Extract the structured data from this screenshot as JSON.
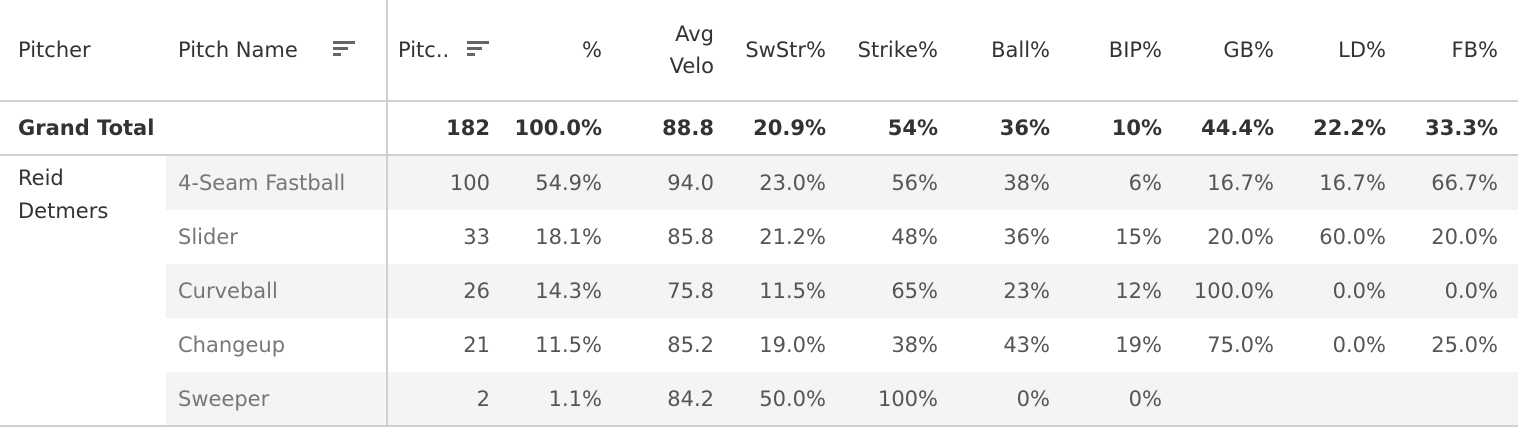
{
  "headers": {
    "pitcher": "Pitcher",
    "pitch_name": "Pitch Name",
    "pitches": "Pitc..",
    "pct": "%",
    "avg_velo_1": "Avg",
    "avg_velo_2": "Velo",
    "swstr": "SwStr%",
    "strike": "Strike%",
    "ball": "Ball%",
    "bip": "BIP%",
    "gb": "GB%",
    "ld": "LD%",
    "fb": "FB%"
  },
  "grand_total": {
    "label": "Grand Total",
    "pitches": "182",
    "pct": "100.0%",
    "avg_velo": "88.8",
    "swstr": "20.9%",
    "strike": "54%",
    "ball": "36%",
    "bip": "10%",
    "gb": "44.4%",
    "ld": "22.2%",
    "fb": "33.3%"
  },
  "pitcher": {
    "name_line1": "Reid",
    "name_line2": "Detmers"
  },
  "rows": [
    {
      "name": "4-Seam Fastball",
      "pitches": "100",
      "pct": "54.9%",
      "avg_velo": "94.0",
      "swstr": "23.0%",
      "strike": "56%",
      "ball": "38%",
      "bip": "6%",
      "gb": "16.7%",
      "ld": "16.7%",
      "fb": "66.7%"
    },
    {
      "name": "Slider",
      "pitches": "33",
      "pct": "18.1%",
      "avg_velo": "85.8",
      "swstr": "21.2%",
      "strike": "48%",
      "ball": "36%",
      "bip": "15%",
      "gb": "20.0%",
      "ld": "60.0%",
      "fb": "20.0%"
    },
    {
      "name": "Curveball",
      "pitches": "26",
      "pct": "14.3%",
      "avg_velo": "75.8",
      "swstr": "11.5%",
      "strike": "65%",
      "ball": "23%",
      "bip": "12%",
      "gb": "100.0%",
      "ld": "0.0%",
      "fb": "0.0%"
    },
    {
      "name": "Changeup",
      "pitches": "21",
      "pct": "11.5%",
      "avg_velo": "85.2",
      "swstr": "19.0%",
      "strike": "38%",
      "ball": "43%",
      "bip": "19%",
      "gb": "75.0%",
      "ld": "0.0%",
      "fb": "25.0%"
    },
    {
      "name": "Sweeper",
      "pitches": "2",
      "pct": "1.1%",
      "avg_velo": "84.2",
      "swstr": "50.0%",
      "strike": "100%",
      "ball": "0%",
      "bip": "0%",
      "gb": "",
      "ld": "",
      "fb": ""
    }
  ],
  "icons": {
    "pitch_name_sort": "sort-descending-icon",
    "pitches_sort": "sort-descending-icon"
  }
}
